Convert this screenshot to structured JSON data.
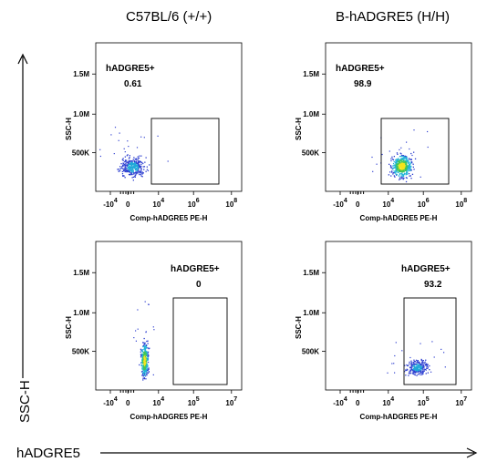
{
  "column_titles": [
    "C57BL/6 (+/+)",
    "B-hADGRE5 (H/H)"
  ],
  "side_labels": {
    "y": "SSC-H",
    "x": "hADGRE5"
  },
  "chart_data": [
    {
      "type": "scatter",
      "position": "top-left",
      "xlabel": "Comp-hADGRE5 PE-H",
      "ylabel": "SSC-H",
      "x_ticks": [
        "-10^4",
        "0",
        "10^4",
        "10^6",
        "10^8"
      ],
      "y_ticks": [
        "500K",
        "1.0M",
        "1.5M"
      ],
      "gate": {
        "name": "hADGRE5+",
        "percent": "0.61"
      },
      "grid": false
    },
    {
      "type": "scatter",
      "position": "top-right",
      "xlabel": "Comp-hADGRE5 PE-H",
      "ylabel": "SSC-H",
      "x_ticks": [
        "-10^4",
        "0",
        "10^4",
        "10^6",
        "10^8"
      ],
      "y_ticks": [
        "500K",
        "1.0M",
        "1.5M"
      ],
      "gate": {
        "name": "hADGRE5+",
        "percent": "98.9"
      },
      "grid": false
    },
    {
      "type": "scatter",
      "position": "bottom-left",
      "xlabel": "Comp-hADGRE5 PE-H",
      "ylabel": "SSC-H",
      "x_ticks": [
        "-10^4",
        "0",
        "10^4",
        "10^5",
        "10^7"
      ],
      "y_ticks": [
        "500K",
        "1.0M",
        "1.5M"
      ],
      "gate": {
        "name": "hADGRE5+",
        "percent": "0"
      },
      "grid": false
    },
    {
      "type": "scatter",
      "position": "bottom-right",
      "xlabel": "Comp-hADGRE5 PE-H",
      "ylabel": "SSC-H",
      "x_ticks": [
        "-10^4",
        "0",
        "10^4",
        "10^5",
        "10^7"
      ],
      "y_ticks": [
        "500K",
        "1.0M",
        "1.5M"
      ],
      "gate": {
        "name": "hADGRE5+",
        "percent": "93.2"
      },
      "grid": false
    }
  ]
}
